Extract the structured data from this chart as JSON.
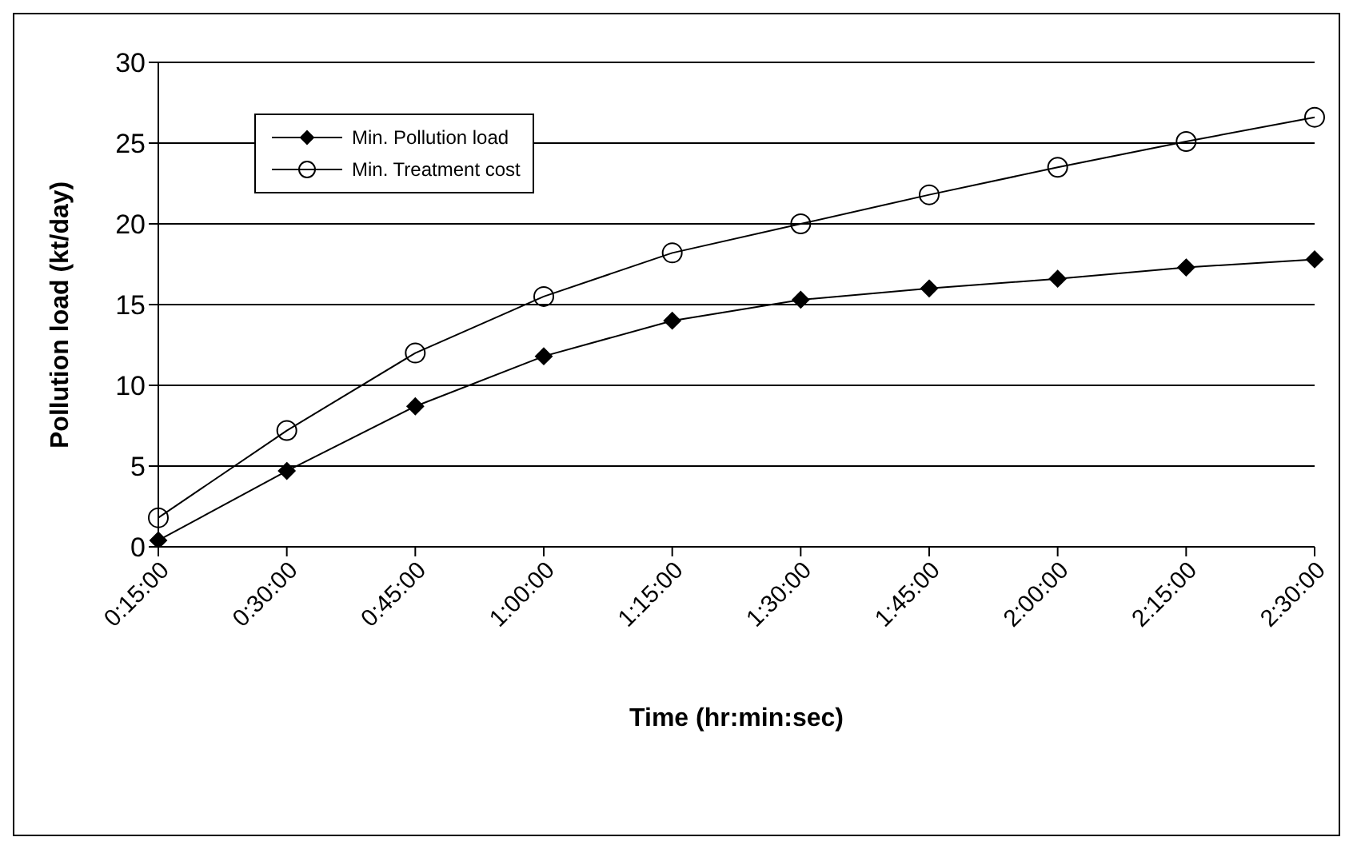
{
  "chart_data": {
    "type": "line",
    "xlabel": "Time (hr:min:sec)",
    "ylabel": "Pollution load (kt/day)",
    "categories": [
      "0:15:00",
      "0:30:00",
      "0:45:00",
      "1:00:00",
      "1:15:00",
      "1:30:00",
      "1:45:00",
      "2:00:00",
      "2:15:00",
      "2:30:00"
    ],
    "series": [
      {
        "name": "Min. Pollution load",
        "color": "#000000",
        "marker": "diamond",
        "values": [
          0.4,
          4.7,
          8.7,
          11.8,
          14.0,
          15.3,
          16.0,
          16.6,
          17.3,
          17.8
        ]
      },
      {
        "name": "Min. Treatment cost",
        "color": "#000000",
        "marker": "circle",
        "values": [
          1.8,
          7.2,
          12.0,
          15.5,
          18.2,
          20.0,
          21.8,
          23.5,
          25.1,
          26.6
        ]
      }
    ],
    "ylim": [
      0,
      30
    ],
    "yticks": [
      0,
      5,
      10,
      15,
      20,
      25,
      30
    ],
    "grid": "y",
    "legend": "top left",
    "line_style": "solid"
  }
}
